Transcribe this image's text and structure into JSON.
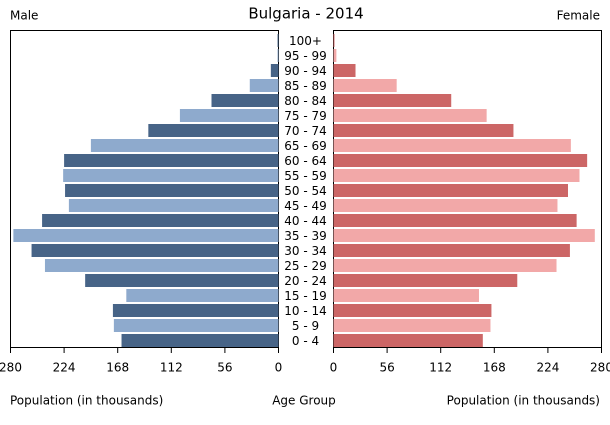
{
  "chart_data": {
    "type": "pyramid",
    "title": "Bulgaria - 2014",
    "categories": [
      "100+",
      "95 - 99",
      "90 - 94",
      "85 - 89",
      "80 - 84",
      "75 - 79",
      "70 - 74",
      "65 - 69",
      "60 - 64",
      "55 - 59",
      "50 - 54",
      "45 - 49",
      "40 - 44",
      "35 - 39",
      "30 - 34",
      "25 - 29",
      "20 - 24",
      "15 - 19",
      "10 - 14",
      "5 - 9",
      "0 - 4"
    ],
    "category_label": "Age Group",
    "xlabel": "Population (in thousands)",
    "xlim": [
      0,
      280
    ],
    "xticks": [
      0,
      56,
      112,
      168,
      224,
      280
    ],
    "series": [
      {
        "name": "Male",
        "colors": [
          "#476487",
          "#8eaacd"
        ],
        "values": [
          1,
          1,
          8,
          30,
          70,
          103,
          136,
          196,
          224,
          225,
          223,
          219,
          247,
          277,
          258,
          244,
          202,
          159,
          173,
          172,
          164
        ]
      },
      {
        "name": "Female",
        "colors": [
          "#cc6666",
          "#f2a8a8"
        ],
        "values": [
          1,
          3,
          23,
          66,
          123,
          160,
          188,
          248,
          265,
          257,
          245,
          234,
          254,
          273,
          247,
          233,
          192,
          152,
          165,
          164,
          156
        ]
      }
    ]
  }
}
